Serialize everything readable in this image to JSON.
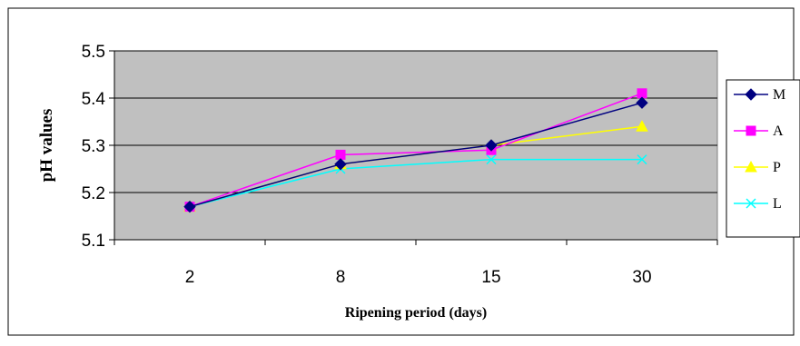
{
  "chart_data": {
    "type": "line",
    "title": "",
    "xlabel": "Ripening period (days)",
    "ylabel": "pH values",
    "categories": [
      "2",
      "8",
      "15",
      "30"
    ],
    "ylim": [
      5.1,
      5.5
    ],
    "yticks": [
      "5.1",
      "5.2",
      "5.3",
      "5.4",
      "5.5"
    ],
    "grid": true,
    "plot_background": "#c0c0c0",
    "legend_position": "right",
    "series": [
      {
        "name": "M",
        "color": "#000080",
        "marker": "diamond",
        "values": [
          5.17,
          5.26,
          5.3,
          5.39
        ]
      },
      {
        "name": "A",
        "color": "#ff00ff",
        "marker": "square",
        "values": [
          5.17,
          5.28,
          5.29,
          5.41
        ]
      },
      {
        "name": "P",
        "color": "#ffff00",
        "marker": "triangle",
        "values": [
          5.17,
          5.26,
          5.3,
          5.34
        ]
      },
      {
        "name": "L",
        "color": "#00ffff",
        "marker": "x",
        "values": [
          5.17,
          5.25,
          5.27,
          5.27
        ]
      }
    ]
  }
}
